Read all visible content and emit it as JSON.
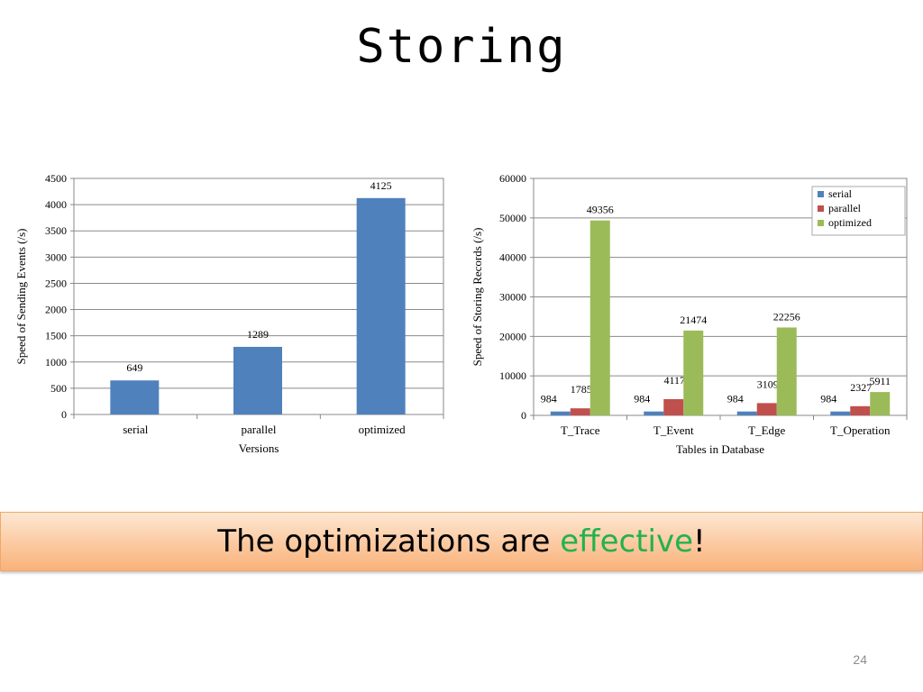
{
  "slide": {
    "title": "Storing",
    "banner": {
      "text_before": "The optimizations are ",
      "accent_word": "effective",
      "text_after": "!",
      "accent_color": "#22b24c"
    },
    "page_number": "24"
  },
  "chart_data": [
    {
      "type": "bar",
      "title": "",
      "xlabel": "Versions",
      "ylabel": "Speed of Sending Events (/s)",
      "ylim": [
        0,
        4500
      ],
      "yticks": [
        0,
        500,
        1000,
        1500,
        2000,
        2500,
        3000,
        3500,
        4000,
        4500
      ],
      "categories": [
        "serial",
        "parallel",
        "optimized"
      ],
      "series": [
        {
          "values": [
            649,
            1289,
            4125
          ],
          "color": "#4f81bd"
        }
      ],
      "grid": true,
      "legend": "none"
    },
    {
      "type": "bar",
      "title": "",
      "xlabel": "Tables in Database",
      "ylabel": "Speed of Storing Records (/s)",
      "ylim": [
        0,
        60000
      ],
      "yticks": [
        0,
        10000,
        20000,
        30000,
        40000,
        50000,
        60000
      ],
      "categories": [
        "T_Trace",
        "T_Event",
        "T_Edge",
        "T_Operation"
      ],
      "series": [
        {
          "name": "serial",
          "values": [
            984,
            984,
            984,
            984
          ],
          "color": "#4f81bd"
        },
        {
          "name": "parallel",
          "values": [
            1785,
            4117,
            3109,
            2327
          ],
          "color": "#c0504d"
        },
        {
          "name": "optimized",
          "values": [
            49356,
            21474,
            22256,
            5911
          ],
          "color": "#9bbb59"
        }
      ],
      "grid": true,
      "legend": "top-right"
    }
  ]
}
